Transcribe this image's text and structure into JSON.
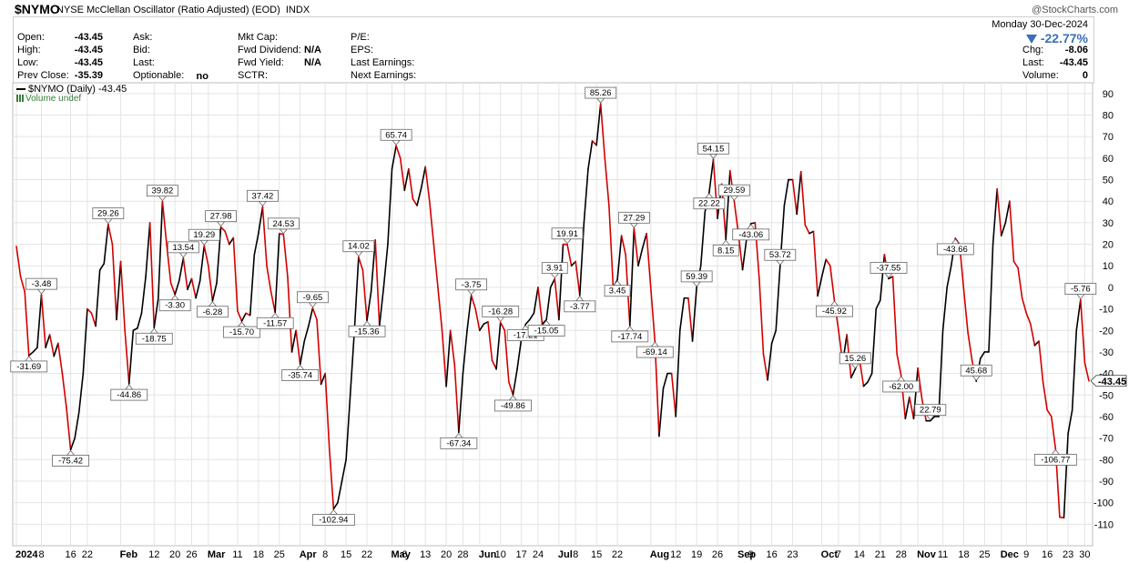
{
  "header": {
    "symbol": "$NYMO",
    "title": "NYSE McClellan Oscillator (Ratio Adjusted) (EOD)",
    "exchange": "INDX",
    "watermark": "@StockCharts.com"
  },
  "quote": {
    "open_label": "Open:",
    "open": "-43.45",
    "high_label": "High:",
    "high": "-43.45",
    "low_label": "Low:",
    "low": "-43.45",
    "prevclose_label": "Prev Close:",
    "prevclose": "-35.39",
    "ask_label": "Ask:",
    "bid_label": "Bid:",
    "last_label": "Last:",
    "optionable_label": "Optionable:",
    "optionable": "no",
    "mktcap_label": "Mkt Cap:",
    "fwddiv_label": "Fwd Dividend:",
    "fwddiv": "N/A",
    "fwdyield_label": "Fwd Yield:",
    "fwdyield": "N/A",
    "sctr_label": "SCTR:",
    "pe_label": "P/E:",
    "eps_label": "EPS:",
    "lastearn_label": "Last Earnings:",
    "nextearn_label": "Next Earnings:"
  },
  "summary": {
    "date": "Monday 30-Dec-2024",
    "pct": "-22.77%",
    "chg_label": "Chg:",
    "chg": "-8.06",
    "last_label": "Last:",
    "last": "-43.45",
    "volume_label": "Volume:",
    "volume": "0"
  },
  "legend": {
    "series_label": "$NYMO (Daily) -43.45",
    "volume_label": "Volume undef"
  },
  "colors": {
    "up": "#000000",
    "down": "#d40000",
    "grid": "#e4e4e4",
    "accent": "#3b6fb6"
  },
  "chart_data": {
    "type": "line",
    "title": "NYSE McClellan Oscillator (Ratio Adjusted) (EOD)",
    "ylim": [
      -120,
      95
    ],
    "yticks": [
      90,
      80,
      70,
      60,
      50,
      40,
      30,
      20,
      10,
      0,
      -10,
      -20,
      -30,
      -40,
      -50,
      -60,
      -70,
      -80,
      -90,
      -100,
      -110
    ],
    "grid": true,
    "x_ticks": [
      {
        "i": 0,
        "label": "2024",
        "bold": true
      },
      {
        "i": 6,
        "label": "8"
      },
      {
        "i": 13,
        "label": "16"
      },
      {
        "i": 17,
        "label": "22"
      },
      {
        "i": 25,
        "label": "Feb",
        "bold": true
      },
      {
        "i": 33,
        "label": "12"
      },
      {
        "i": 38,
        "label": "20"
      },
      {
        "i": 42,
        "label": "26"
      },
      {
        "i": 46,
        "label": "Mar",
        "bold": true
      },
      {
        "i": 53,
        "label": "11"
      },
      {
        "i": 58,
        "label": "18"
      },
      {
        "i": 63,
        "label": "25"
      },
      {
        "i": 68,
        "label": "Apr",
        "bold": true
      },
      {
        "i": 74,
        "label": "8"
      },
      {
        "i": 79,
        "label": "15"
      },
      {
        "i": 84,
        "label": "22"
      },
      {
        "i": 90,
        "label": "May",
        "bold": true
      },
      {
        "i": 93,
        "label": "6"
      },
      {
        "i": 98,
        "label": "13"
      },
      {
        "i": 103,
        "label": "20"
      },
      {
        "i": 107,
        "label": "28"
      },
      {
        "i": 111,
        "label": "Jun",
        "bold": true
      },
      {
        "i": 116,
        "label": "10"
      },
      {
        "i": 121,
        "label": "17"
      },
      {
        "i": 125,
        "label": "24"
      },
      {
        "i": 130,
        "label": "Jul",
        "bold": true
      },
      {
        "i": 134,
        "label": "8"
      },
      {
        "i": 139,
        "label": "15"
      },
      {
        "i": 144,
        "label": "22"
      },
      {
        "i": 152,
        "label": "Aug",
        "bold": true
      },
      {
        "i": 158,
        "label": "12"
      },
      {
        "i": 163,
        "label": "19"
      },
      {
        "i": 168,
        "label": "26"
      },
      {
        "i": 173,
        "label": "Sep",
        "bold": true
      },
      {
        "i": 176,
        "label": "9"
      },
      {
        "i": 181,
        "label": "16"
      },
      {
        "i": 186,
        "label": "23"
      },
      {
        "i": 193,
        "label": "Oct",
        "bold": true
      },
      {
        "i": 197,
        "label": "7"
      },
      {
        "i": 202,
        "label": "14"
      },
      {
        "i": 207,
        "label": "21"
      },
      {
        "i": 212,
        "label": "28"
      },
      {
        "i": 216,
        "label": "Nov",
        "bold": true
      },
      {
        "i": 222,
        "label": "11"
      },
      {
        "i": 227,
        "label": "18"
      },
      {
        "i": 232,
        "label": "25"
      },
      {
        "i": 236,
        "label": "Dec",
        "bold": true
      },
      {
        "i": 242,
        "label": "9"
      },
      {
        "i": 247,
        "label": "16"
      },
      {
        "i": 252,
        "label": "23"
      },
      {
        "i": 256,
        "label": "30"
      }
    ],
    "series": [
      {
        "values": [
          19,
          5,
          -2,
          -31.69,
          -30,
          -28,
          -3.48,
          -28,
          -22,
          -32,
          -26,
          -40,
          -56,
          -75.42,
          -70,
          -58,
          -40,
          -10,
          -12,
          -18,
          8,
          11,
          29.26,
          20,
          -15,
          12,
          -20,
          -44.86,
          -20,
          -19,
          -12,
          5,
          30,
          -18.75,
          -5,
          39.82,
          20,
          2,
          -3.3,
          3,
          13.54,
          -1,
          4,
          -5,
          3,
          19.29,
          10,
          -6.28,
          2,
          27.98,
          26,
          20,
          23,
          -11,
          -15.7,
          -12,
          -13,
          15,
          25,
          37.42,
          10,
          -2,
          -11.57,
          25,
          24.53,
          5,
          -30,
          -20,
          -35.74,
          -25,
          -18,
          -9.65,
          -15,
          -45,
          -40,
          -75,
          -102.94,
          -100,
          -90,
          -80,
          -50,
          -20,
          14.02,
          8,
          -15.36,
          -2,
          22,
          -18,
          0,
          20,
          55,
          65.74,
          60,
          45,
          55,
          41,
          38,
          46,
          56,
          40,
          20,
          0,
          -20,
          -46,
          -20,
          -36,
          -67.34,
          -40,
          -20,
          -3.75,
          -10,
          -20,
          -17,
          -16,
          -34,
          -38,
          -16.28,
          -20,
          -44,
          -49.86,
          -38,
          -24,
          -17.21,
          -15,
          -12,
          0,
          -17,
          -15.05,
          0,
          3.91,
          -15,
          20,
          19.91,
          10,
          12,
          -3.77,
          30,
          55,
          68,
          66,
          85.26,
          60,
          38,
          0,
          3.45,
          24,
          15,
          -17.74,
          27.29,
          10,
          18,
          25,
          0,
          -25,
          -69.14,
          -47,
          -40,
          -40,
          -60,
          -20,
          -5,
          -5,
          -25,
          0,
          10,
          35,
          44,
          59.39,
          32,
          48,
          22.22,
          54.15,
          40,
          25,
          8.15,
          23,
          29.59,
          30,
          4,
          -31,
          -43.06,
          -26,
          -20,
          10,
          38,
          50,
          50,
          34,
          53.72,
          29,
          25,
          26,
          -4,
          5,
          13,
          10,
          -6,
          -20,
          -35,
          -22,
          -42,
          -38,
          -33,
          -45.92,
          -44,
          -40,
          -10,
          -6,
          15.26,
          4,
          5,
          -31,
          -41,
          -61,
          -51,
          -61,
          -37.55,
          -52,
          -62,
          -62.0,
          -60,
          -60,
          -20,
          0,
          10,
          22.79,
          20,
          -1,
          -21,
          -34,
          -43.66,
          -33,
          -30,
          -30,
          20,
          45.68,
          24,
          30,
          40,
          12,
          9,
          -5,
          -12,
          -17,
          -27,
          -25,
          -44,
          -57,
          -60,
          -75,
          -106.77,
          -107,
          -68,
          -57,
          -20,
          -5.76,
          -35,
          -43.45
        ]
      }
    ],
    "peak_labels": [
      {
        "i": 3,
        "text": "-31.69",
        "pos": "below"
      },
      {
        "i": 6,
        "text": "-3.48",
        "pos": "above"
      },
      {
        "i": 13,
        "text": "-75.42",
        "pos": "below"
      },
      {
        "i": 22,
        "text": "29.26",
        "pos": "above"
      },
      {
        "i": 27,
        "text": "-44.86",
        "pos": "below"
      },
      {
        "i": 33,
        "text": "-18.75",
        "pos": "below"
      },
      {
        "i": 35,
        "text": "39.82",
        "pos": "above"
      },
      {
        "i": 38,
        "text": "-3.30",
        "pos": "below"
      },
      {
        "i": 40,
        "text": "13.54",
        "pos": "above"
      },
      {
        "i": 45,
        "text": "19.29",
        "pos": "above"
      },
      {
        "i": 47,
        "text": "-6.28",
        "pos": "below"
      },
      {
        "i": 49,
        "text": "27.98",
        "pos": "above"
      },
      {
        "i": 54,
        "text": "-15.70",
        "pos": "below"
      },
      {
        "i": 59,
        "text": "37.42",
        "pos": "above"
      },
      {
        "i": 62,
        "text": "-11.57",
        "pos": "below"
      },
      {
        "i": 64,
        "text": "24.53",
        "pos": "above"
      },
      {
        "i": 68,
        "text": "-35.74",
        "pos": "below"
      },
      {
        "i": 71,
        "text": "-9.65",
        "pos": "above"
      },
      {
        "i": 76,
        "text": "-102.94",
        "pos": "below"
      },
      {
        "i": 82,
        "text": "14.02",
        "pos": "above"
      },
      {
        "i": 84,
        "text": "-15.36",
        "pos": "below"
      },
      {
        "i": 91,
        "text": "65.74",
        "pos": "above"
      },
      {
        "i": 106,
        "text": "-67.34",
        "pos": "below"
      },
      {
        "i": 109,
        "text": "-3.75",
        "pos": "above"
      },
      {
        "i": 116,
        "text": "-16.28",
        "pos": "above"
      },
      {
        "i": 119,
        "text": "-49.86",
        "pos": "below"
      },
      {
        "i": 122,
        "text": "-17.21",
        "pos": "below"
      },
      {
        "i": 127,
        "text": "-15.05",
        "pos": "below"
      },
      {
        "i": 129,
        "text": "3.91",
        "pos": "above"
      },
      {
        "i": 132,
        "text": "19.91",
        "pos": "above"
      },
      {
        "i": 135,
        "text": "-3.77",
        "pos": "below"
      },
      {
        "i": 140,
        "text": "85.26",
        "pos": "above"
      },
      {
        "i": 144,
        "text": "3.45",
        "pos": "below"
      },
      {
        "i": 147,
        "text": "-17.74",
        "pos": "below"
      },
      {
        "i": 148,
        "text": "27.29",
        "pos": "above"
      },
      {
        "i": 153,
        "text": "-69.14",
        "pos": "below"
      },
      {
        "i": 163,
        "text": "59.39",
        "pos": "above"
      },
      {
        "i": 166,
        "text": "22.22",
        "pos": "below"
      },
      {
        "i": 167,
        "text": "54.15",
        "pos": "above"
      },
      {
        "i": 170,
        "text": "8.15",
        "pos": "below"
      },
      {
        "i": 172,
        "text": "29.59",
        "pos": "above"
      },
      {
        "i": 176,
        "text": "-43.06",
        "pos": "below"
      },
      {
        "i": 183,
        "text": "53.72",
        "pos": "above"
      },
      {
        "i": 196,
        "text": "-45.92",
        "pos": "below"
      },
      {
        "i": 201,
        "text": "15.26",
        "pos": "above"
      },
      {
        "i": 209,
        "text": "-37.55",
        "pos": "above"
      },
      {
        "i": 212,
        "text": "-62.00",
        "pos": "below"
      },
      {
        "i": 219,
        "text": "22.79",
        "pos": "above"
      },
      {
        "i": 225,
        "text": "-43.66",
        "pos": "below"
      },
      {
        "i": 230,
        "text": "45.68",
        "pos": "above"
      },
      {
        "i": 249,
        "text": "-106.77",
        "pos": "below"
      },
      {
        "i": 255,
        "text": "-5.76",
        "pos": "above"
      }
    ],
    "last_value_label": "-43.45"
  }
}
